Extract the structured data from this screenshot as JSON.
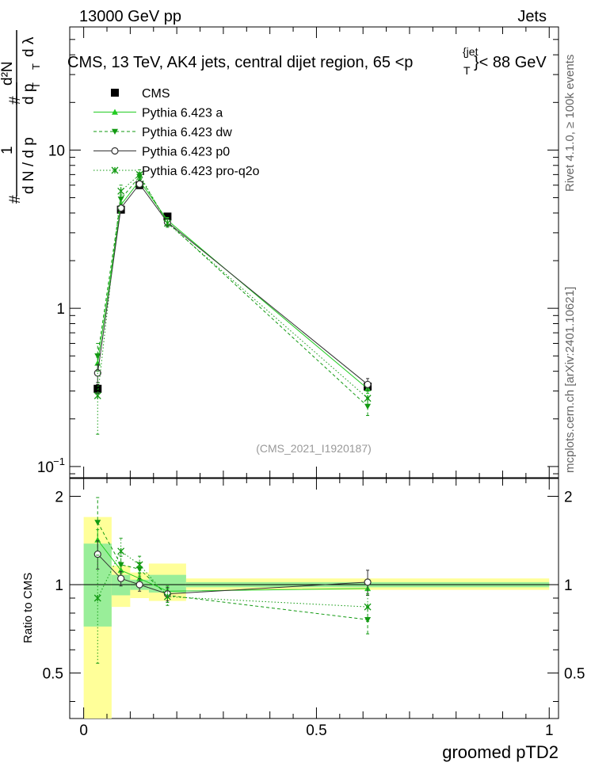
{
  "header": {
    "left": "13000 GeV pp",
    "right": "Jets"
  },
  "title": {
    "main": "CMS, 13 TeV, AK4 jets, central dijet region, 65 <p",
    "sup": "{jet",
    "sub": "T",
    "tail": "}< 88 GeV"
  },
  "side_labels": {
    "rivet": "Rivet 4.1.0, ≥ 100k events",
    "mcplots": "mcplots.cern.ch [arXiv:2401.10621]"
  },
  "watermark": "(CMS_2021_I1920187)",
  "y_main_label": {
    "hash1": "#",
    "one": "1",
    "dN": "d N / d p",
    "subT": "T",
    "hash2": "#",
    "num": "d²N",
    "den": "d p",
    "denSub": "T",
    "dl": "d λ"
  },
  "chart_data": [
    {
      "type": "scatter",
      "panel": "main",
      "title": "CMS, 13 TeV, AK4 jets, central dijet region, 65 <p_T^{jet}< 88 GeV",
      "xlabel": "groomed pTD2",
      "ylabel": "1/dN/dp_T d²N/dp_T dλ",
      "yscale": "log",
      "xlim": [
        -0.03,
        1.02
      ],
      "ylim": [
        0.085,
        60
      ],
      "yticks": [
        {
          "value": 0.1,
          "label": "10",
          "sup": "−1"
        },
        {
          "value": 1,
          "label": "1",
          "sup": ""
        },
        {
          "value": 10,
          "label": "10",
          "sup": ""
        }
      ],
      "x_bins": [
        [
          0,
          0.06
        ],
        [
          0.06,
          0.1
        ],
        [
          0.1,
          0.14
        ],
        [
          0.14,
          0.22
        ],
        [
          0.22,
          1.0
        ]
      ],
      "x": [
        0.03,
        0.08,
        0.12,
        0.18,
        0.61
      ],
      "series": [
        {
          "name": "CMS",
          "style": "data",
          "values": [
            0.31,
            4.2,
            6.0,
            3.8,
            0.32
          ],
          "errors": [
            0.02,
            0.15,
            0.2,
            0.1,
            0.02
          ]
        },
        {
          "name": "Pythia 6.423 a",
          "style": "a",
          "values": [
            0.45,
            4.5,
            6.4,
            3.6,
            0.31
          ],
          "errors": [
            0.04,
            0.2,
            0.3,
            0.15,
            0.02
          ]
        },
        {
          "name": "Pythia 6.423 dw",
          "style": "dw",
          "values": [
            0.5,
            4.9,
            6.8,
            3.5,
            0.24
          ],
          "errors": [
            0.1,
            0.3,
            0.4,
            0.2,
            0.03
          ]
        },
        {
          "name": "Pythia 6.423 p0",
          "style": "p0",
          "values": [
            0.39,
            4.3,
            6.1,
            3.5,
            0.33
          ],
          "errors": [
            0.05,
            0.2,
            0.3,
            0.2,
            0.03
          ]
        },
        {
          "name": "Pythia 6.423 pro-q2o",
          "style": "q2o",
          "values": [
            0.28,
            5.5,
            7.0,
            3.45,
            0.27
          ],
          "errors": [
            0.12,
            0.5,
            0.5,
            0.2,
            0.03
          ]
        }
      ]
    },
    {
      "type": "scatter",
      "panel": "ratio",
      "xlabel": "groomed pTD2",
      "ylabel": "Ratio to CMS",
      "xlim": [
        -0.03,
        1.02
      ],
      "ylim": [
        0.35,
        2.3
      ],
      "yticks": [
        0.5,
        1,
        2
      ],
      "xticks": [
        0,
        0.5,
        1
      ],
      "x": [
        0.03,
        0.08,
        0.12,
        0.18,
        0.61
      ],
      "band_inner": [
        [
          0.72,
          1.38
        ],
        [
          0.92,
          1.08
        ],
        [
          0.96,
          1.04
        ],
        [
          0.94,
          1.08
        ],
        [
          0.98,
          1.02
        ]
      ],
      "band_outer": [
        [
          0.3,
          1.7
        ],
        [
          0.84,
          1.16
        ],
        [
          0.9,
          1.1
        ],
        [
          0.88,
          1.18
        ],
        [
          0.96,
          1.05
        ]
      ],
      "series": [
        {
          "name": "Pythia 6.423 a",
          "style": "a",
          "values": [
            1.42,
            1.12,
            1.05,
            0.95,
            0.97
          ],
          "errors": [
            0.12,
            0.06,
            0.05,
            0.04,
            0.05
          ]
        },
        {
          "name": "Pythia 6.423 dw",
          "style": "dw",
          "values": [
            1.63,
            1.17,
            1.13,
            0.92,
            0.76
          ],
          "errors": [
            0.35,
            0.08,
            0.06,
            0.05,
            0.08
          ]
        },
        {
          "name": "Pythia 6.423 p0",
          "style": "p0",
          "values": [
            1.27,
            1.05,
            1.0,
            0.93,
            1.02
          ],
          "errors": [
            0.14,
            0.06,
            0.05,
            0.05,
            0.1
          ]
        },
        {
          "name": "Pythia 6.423 pro-q2o",
          "style": "q2o",
          "values": [
            0.9,
            1.3,
            1.17,
            0.91,
            0.84
          ],
          "errors": [
            0.36,
            0.14,
            0.08,
            0.06,
            0.09
          ]
        }
      ]
    }
  ]
}
